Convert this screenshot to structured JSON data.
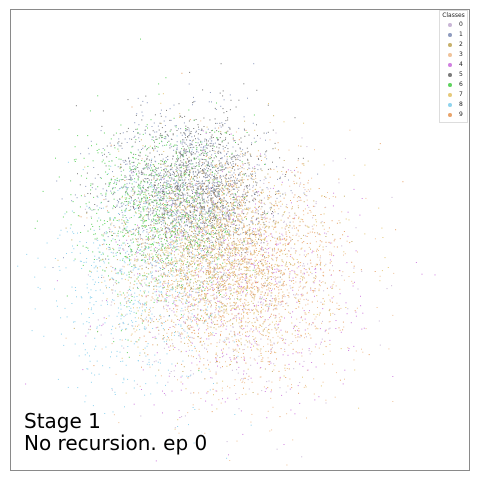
{
  "caption": {
    "line1": "Stage 1",
    "line2": "No recursion. ep 0"
  },
  "chart_data": {
    "type": "scatter",
    "title": "",
    "xlabel": "",
    "ylabel": "",
    "axes_visible": false,
    "grid": false,
    "legend": {
      "title": "Classes",
      "placement": "top-right",
      "entries": [
        {
          "name": "0",
          "color": "#c9b6d6"
        },
        {
          "name": "1",
          "color": "#8e9bbf"
        },
        {
          "name": "2",
          "color": "#c7b06a"
        },
        {
          "name": "3",
          "color": "#f0c39a"
        },
        {
          "name": "4",
          "color": "#d07fe0"
        },
        {
          "name": "5",
          "color": "#7a7a7a"
        },
        {
          "name": "6",
          "color": "#5fd35f"
        },
        {
          "name": "7",
          "color": "#e6c97a"
        },
        {
          "name": "8",
          "color": "#8fd3ee"
        },
        {
          "name": "9",
          "color": "#e8a36a"
        }
      ]
    },
    "xlim": [
      0,
      1
    ],
    "ylim": [
      0,
      1
    ],
    "series": [
      {
        "name": "0",
        "center": [
          0.47,
          0.42
        ],
        "spread": [
          0.12,
          0.13
        ],
        "count": 700
      },
      {
        "name": "1",
        "center": [
          0.38,
          0.61
        ],
        "spread": [
          0.09,
          0.08
        ],
        "count": 1100
      },
      {
        "name": "2",
        "center": [
          0.44,
          0.48
        ],
        "spread": [
          0.1,
          0.1
        ],
        "count": 1000
      },
      {
        "name": "3",
        "center": [
          0.52,
          0.4
        ],
        "spread": [
          0.12,
          0.12
        ],
        "count": 800
      },
      {
        "name": "4",
        "center": [
          0.5,
          0.38
        ],
        "spread": [
          0.13,
          0.13
        ],
        "count": 500
      },
      {
        "name": "5",
        "center": [
          0.4,
          0.62
        ],
        "spread": [
          0.08,
          0.08
        ],
        "count": 1200
      },
      {
        "name": "6",
        "center": [
          0.32,
          0.56
        ],
        "spread": [
          0.09,
          0.1
        ],
        "count": 900
      },
      {
        "name": "7",
        "center": [
          0.46,
          0.45
        ],
        "spread": [
          0.11,
          0.11
        ],
        "count": 900
      },
      {
        "name": "8",
        "center": [
          0.28,
          0.4
        ],
        "spread": [
          0.1,
          0.12
        ],
        "count": 600
      },
      {
        "name": "9",
        "center": [
          0.5,
          0.44
        ],
        "spread": [
          0.11,
          0.11
        ],
        "count": 900
      }
    ]
  }
}
